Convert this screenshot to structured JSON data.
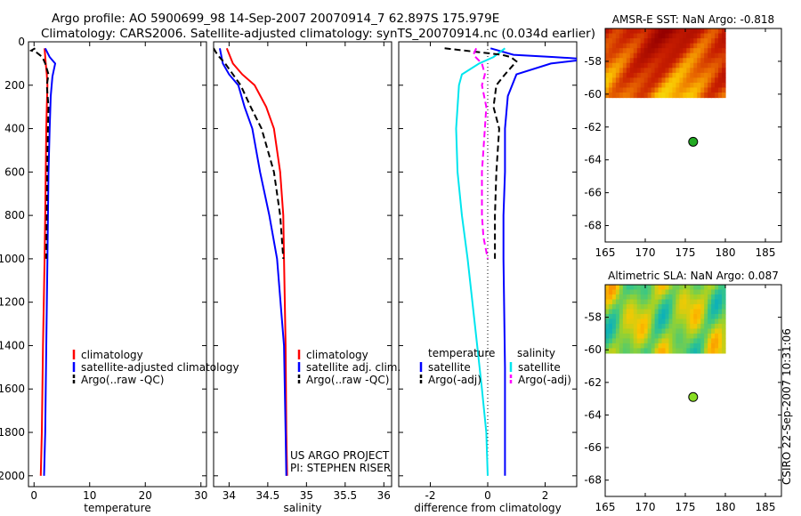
{
  "header": {
    "line1": "Argo profile: AO 5900699_98 14-Sep-2007 20070914_7 62.897S 175.979E",
    "line2": "Climatology: CARS2006. Satellite-adjusted climatology: synTS_20070914.nc (0.034d earlier)"
  },
  "side_stamp": "CSIRO 22-Sep-2007 10:31:06",
  "colors": {
    "red": "#ff0000",
    "blue": "#0000ff",
    "black": "#000000",
    "cyan": "#00e5ee",
    "magenta": "#ff00ff"
  },
  "chart_data": [
    {
      "type": "line",
      "xlabel": "temperature",
      "xlim": [
        -1,
        31
      ],
      "ylim": [
        2050,
        0
      ],
      "y_reversed": true,
      "xticks": [
        0,
        10,
        20,
        30
      ],
      "yticks": [
        0,
        200,
        400,
        600,
        800,
        1000,
        1200,
        1400,
        1600,
        1800,
        2000
      ],
      "series": [
        {
          "name": "climatology",
          "color": "#ff0000",
          "dash": "solid",
          "x": [
            1.9,
            2.1,
            2.3,
            2.4,
            2.3,
            2.2,
            2.1,
            2.0,
            1.9,
            1.6,
            1.4,
            1.2
          ],
          "y": [
            30,
            100,
            150,
            200,
            300,
            400,
            600,
            800,
            1000,
            1400,
            1800,
            2000
          ]
        },
        {
          "name": "satellite-adjusted climatology",
          "color": "#0000ff",
          "dash": "solid",
          "x": [
            2.0,
            2.8,
            3.8,
            3.3,
            3.0,
            2.8,
            2.6,
            2.5,
            2.4,
            2.2,
            2.0,
            1.8
          ],
          "y": [
            30,
            70,
            100,
            160,
            250,
            400,
            600,
            800,
            1000,
            1400,
            1800,
            2000
          ]
        },
        {
          "name": "Argo(..raw -QC)",
          "color": "#000000",
          "dash": "dashed",
          "x": [
            0.2,
            -0.5,
            0.5,
            1.5,
            2.0,
            2.6,
            2.3,
            2.6,
            2.4,
            2.2
          ],
          "y": [
            30,
            40,
            50,
            70,
            100,
            150,
            200,
            300,
            500,
            1000
          ]
        }
      ],
      "legend": {
        "position": "lower-right",
        "labels": [
          "climatology",
          "satellite-adjusted climatology",
          "Argo(..raw -QC)"
        ]
      }
    },
    {
      "type": "line",
      "xlabel": "salinity",
      "xlim": [
        33.8,
        36.1
      ],
      "ylim": [
        2050,
        0
      ],
      "y_reversed": true,
      "xticks": [
        34,
        34.5,
        35,
        35.5,
        36
      ],
      "series": [
        {
          "name": "climatology",
          "color": "#ff0000",
          "dash": "solid",
          "x": [
            33.97,
            34.05,
            34.17,
            34.33,
            34.48,
            34.58,
            34.66,
            34.7,
            34.71,
            34.73,
            34.74,
            34.75
          ],
          "y": [
            30,
            100,
            150,
            200,
            300,
            400,
            600,
            800,
            1000,
            1400,
            1800,
            2000
          ]
        },
        {
          "name": "satellite adj. clim.",
          "color": "#0000ff",
          "dash": "solid",
          "x": [
            33.88,
            33.92,
            34.0,
            34.12,
            34.2,
            34.3,
            34.4,
            34.52,
            34.62,
            34.71,
            34.73,
            34.74
          ],
          "y": [
            30,
            100,
            150,
            200,
            300,
            400,
            600,
            800,
            1000,
            1400,
            1800,
            2000
          ]
        },
        {
          "name": "Argo(..raw -QC)",
          "color": "#000000",
          "dash": "dashed",
          "x": [
            33.8,
            33.85,
            33.95,
            34.05,
            34.15,
            34.28,
            34.42,
            34.58,
            34.66,
            34.7
          ],
          "y": [
            30,
            60,
            100,
            150,
            200,
            300,
            400,
            600,
            800,
            1000
          ]
        }
      ],
      "legend": {
        "position": "lower-right",
        "labels": [
          "climatology",
          "satellite adj. clim.",
          "Argo(..raw -QC)"
        ]
      },
      "annotation": [
        "US ARGO PROJECT",
        "PI: STEPHEN RISER"
      ]
    },
    {
      "type": "line",
      "xlabel": "difference from climatology",
      "xlim": [
        -3.1,
        3.1
      ],
      "ylim": [
        2050,
        0
      ],
      "y_reversed": true,
      "xticks": [
        -2,
        0,
        2
      ],
      "zero_line": "dotted",
      "series": [
        {
          "name": "temperature satellite",
          "color": "#0000ff",
          "dash": "solid",
          "x": [
            0.1,
            0.9,
            2.3,
            3.5,
            2.2,
            1.0,
            0.7,
            0.6,
            0.6,
            0.55,
            0.55,
            0.6,
            0.6
          ],
          "y": [
            30,
            60,
            70,
            80,
            100,
            150,
            250,
            400,
            600,
            800,
            1000,
            1500,
            2000
          ]
        },
        {
          "name": "salinity satellite",
          "color": "#00e5ee",
          "dash": "solid",
          "x": [
            0.6,
            0.2,
            -0.3,
            -0.9,
            -1.0,
            -1.1,
            -1.05,
            -0.9,
            -0.7,
            -0.45,
            -0.2,
            -0.05,
            0.0
          ],
          "y": [
            30,
            70,
            100,
            150,
            200,
            400,
            600,
            800,
            1000,
            1300,
            1600,
            1800,
            2000
          ]
        },
        {
          "name": "temperature Argo(-adj)",
          "color": "#000000",
          "dash": "dashed",
          "x": [
            -1.5,
            0.5,
            0.8,
            1.0,
            0.6,
            0.3,
            0.2,
            0.4,
            0.3,
            0.25,
            0.25
          ],
          "y": [
            30,
            60,
            70,
            90,
            150,
            200,
            300,
            400,
            600,
            800,
            1000
          ]
        },
        {
          "name": "salinity Argo(-adj)",
          "color": "#ff00ff",
          "dash": "dashed",
          "x": [
            -0.4,
            -0.5,
            -0.2,
            -0.1,
            -0.2,
            -0.05,
            -0.1,
            -0.2,
            -0.2,
            -0.15,
            0.0
          ],
          "y": [
            30,
            60,
            100,
            150,
            200,
            300,
            400,
            600,
            800,
            900,
            1000
          ]
        }
      ],
      "legend": {
        "position": "lower-center",
        "groups": [
          "temperature",
          "salinity"
        ],
        "labels": [
          "satellite",
          "Argo(-adj)",
          "satellite",
          "Argo(-adj)"
        ]
      }
    },
    {
      "type": "heatmap",
      "title": "AMSR-E SST: NaN Argo: -0.818",
      "xlim": [
        165,
        187
      ],
      "ylim": [
        -69,
        -56
      ],
      "xticks": [
        165,
        170,
        175,
        180,
        185
      ],
      "yticks": [
        -58,
        -60,
        -62,
        -64,
        -66,
        -68
      ],
      "field_extent": {
        "lon": [
          165,
          180
        ],
        "lat": [
          -60.2,
          -56
        ]
      },
      "colormap": "sst",
      "marker": {
        "lon": 175.979,
        "lat": -62.897,
        "color": "#22aa22"
      }
    },
    {
      "type": "heatmap",
      "title": "Altimetric SLA: NaN Argo: 0.087",
      "xlim": [
        165,
        187
      ],
      "ylim": [
        -69,
        -56
      ],
      "xticks": [
        165,
        170,
        175,
        180,
        185
      ],
      "yticks": [
        -58,
        -60,
        -62,
        -64,
        -66,
        -68
      ],
      "field_extent": {
        "lon": [
          165,
          180
        ],
        "lat": [
          -60.2,
          -56
        ]
      },
      "colormap": "sla",
      "marker": {
        "lon": 175.979,
        "lat": -62.897,
        "color": "#88dd22"
      }
    }
  ]
}
